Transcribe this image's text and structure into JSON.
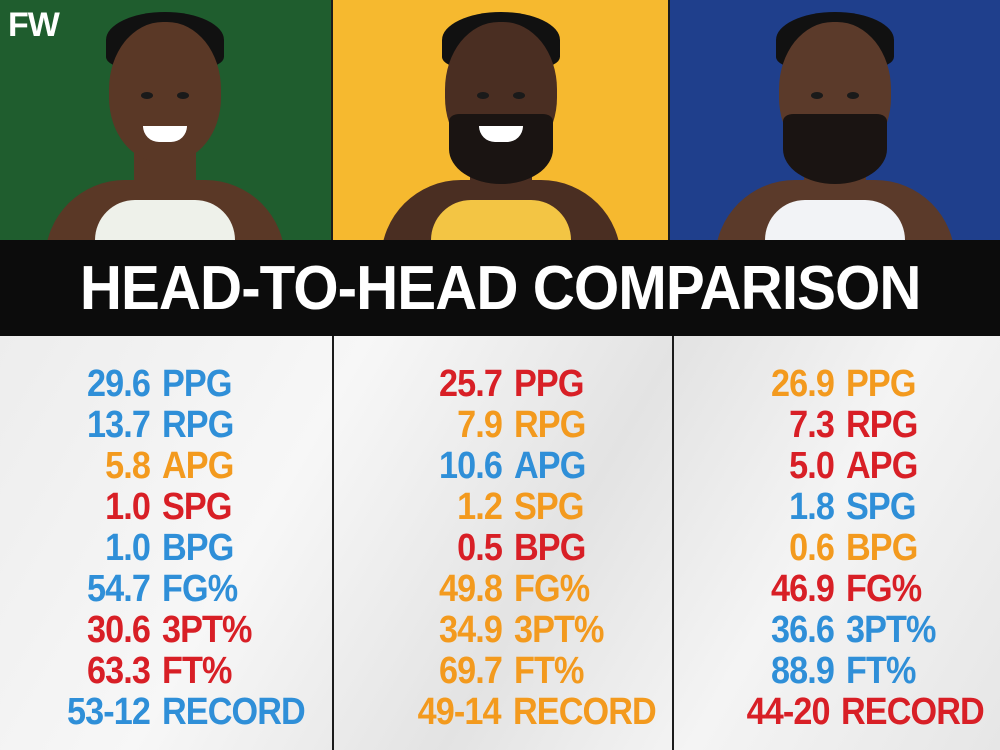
{
  "logo": "FW",
  "title": "HEAD-TO-HEAD COMPARISON",
  "colors": {
    "blue": "#2f8fd8",
    "red": "#d81f26",
    "orange": "#f39a1e"
  },
  "players": [
    {
      "panel_bg": "#1f5d2e",
      "jersey": "#eef1ea",
      "skin": "#5a3826",
      "stats": [
        {
          "value": "29.6",
          "label": "PPG",
          "color": "blue"
        },
        {
          "value": "13.7",
          "label": "RPG",
          "color": "blue"
        },
        {
          "value": "5.8",
          "label": "APG",
          "color": "orange"
        },
        {
          "value": "1.0",
          "label": "SPG",
          "color": "red"
        },
        {
          "value": "1.0",
          "label": "BPG",
          "color": "blue"
        },
        {
          "value": "54.7",
          "label": "FG%",
          "color": "blue"
        },
        {
          "value": "30.6",
          "label": "3PT%",
          "color": "red"
        },
        {
          "value": "63.3",
          "label": "FT%",
          "color": "red"
        },
        {
          "value": "53-12",
          "label": "RECORD",
          "color": "blue"
        }
      ]
    },
    {
      "panel_bg": "#f6b92f",
      "jersey": "#f3c544",
      "skin": "#4a2e22",
      "stats": [
        {
          "value": "25.7",
          "label": "PPG",
          "color": "red"
        },
        {
          "value": "7.9",
          "label": "RPG",
          "color": "orange"
        },
        {
          "value": "10.6",
          "label": "APG",
          "color": "blue"
        },
        {
          "value": "1.2",
          "label": "SPG",
          "color": "orange"
        },
        {
          "value": "0.5",
          "label": "BPG",
          "color": "red"
        },
        {
          "value": "49.8",
          "label": "FG%",
          "color": "orange"
        },
        {
          "value": "34.9",
          "label": "3PT%",
          "color": "orange"
        },
        {
          "value": "69.7",
          "label": "FT%",
          "color": "orange"
        },
        {
          "value": "49-14",
          "label": "RECORD",
          "color": "orange"
        }
      ]
    },
    {
      "panel_bg": "#1f3f8c",
      "jersey": "#f2f3f6",
      "skin": "#5b3a2a",
      "stats": [
        {
          "value": "26.9",
          "label": "PPG",
          "color": "orange"
        },
        {
          "value": "7.3",
          "label": "RPG",
          "color": "red"
        },
        {
          "value": "5.0",
          "label": "APG",
          "color": "red"
        },
        {
          "value": "1.8",
          "label": "SPG",
          "color": "blue"
        },
        {
          "value": "0.6",
          "label": "BPG",
          "color": "orange"
        },
        {
          "value": "46.9",
          "label": "FG%",
          "color": "red"
        },
        {
          "value": "36.6",
          "label": "3PT%",
          "color": "blue"
        },
        {
          "value": "88.9",
          "label": "FT%",
          "color": "blue"
        },
        {
          "value": "44-20",
          "label": "RECORD",
          "color": "red"
        }
      ]
    }
  ]
}
